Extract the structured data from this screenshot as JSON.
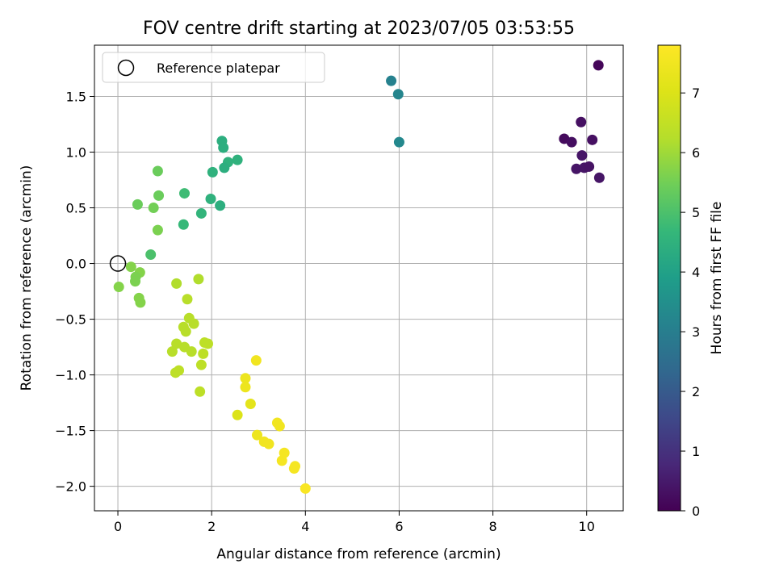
{
  "chart_data": {
    "type": "scatter",
    "title": "FOV centre drift starting at 2023/07/05 03:53:55",
    "xlabel": "Angular distance from reference (arcmin)",
    "ylabel": "Rotation from reference (arcmin)",
    "xlim": [
      -0.5,
      10.78
    ],
    "ylim": [
      -2.22,
      1.96
    ],
    "xticks": [
      0,
      2,
      4,
      6,
      8,
      10
    ],
    "yticks": [
      -2.0,
      -1.5,
      -1.0,
      -0.5,
      0.0,
      0.5,
      1.0,
      1.5
    ],
    "xtick_labels": [
      "0",
      "2",
      "4",
      "6",
      "8",
      "10"
    ],
    "ytick_labels": [
      "−2.0",
      "−1.5",
      "−1.0",
      "−0.5",
      "0.0",
      "0.5",
      "1.0",
      "1.5"
    ],
    "grid": true,
    "legend": {
      "placement": "top-left",
      "entries": [
        {
          "label": "Reference platepar",
          "marker": "open-circle"
        }
      ]
    },
    "reference_point": {
      "x": 0.0,
      "y": 0.0
    },
    "colorbar": {
      "label": "Hours from first FF file",
      "colormap": "viridis",
      "range": [
        0,
        7.8
      ],
      "ticks": [
        0,
        1,
        2,
        3,
        4,
        5,
        6,
        7
      ],
      "tick_labels": [
        "0",
        "1",
        "2",
        "3",
        "4",
        "5",
        "6",
        "7"
      ]
    },
    "points": [
      {
        "x": 10.25,
        "y": 1.78,
        "c": 0.1
      },
      {
        "x": 9.52,
        "y": 1.12,
        "c": 0.2
      },
      {
        "x": 9.68,
        "y": 1.09,
        "c": 0.25
      },
      {
        "x": 9.88,
        "y": 1.27,
        "c": 0.3
      },
      {
        "x": 10.12,
        "y": 1.11,
        "c": 0.3
      },
      {
        "x": 9.9,
        "y": 0.97,
        "c": 0.4
      },
      {
        "x": 9.78,
        "y": 0.85,
        "c": 0.4
      },
      {
        "x": 9.95,
        "y": 0.86,
        "c": 0.4
      },
      {
        "x": 10.05,
        "y": 0.87,
        "c": 0.35
      },
      {
        "x": 10.27,
        "y": 0.77,
        "c": 0.4
      },
      {
        "x": 5.83,
        "y": 1.64,
        "c": 3.1
      },
      {
        "x": 5.98,
        "y": 1.52,
        "c": 3.2
      },
      {
        "x": 6.0,
        "y": 1.09,
        "c": 3.3
      },
      {
        "x": 2.22,
        "y": 1.1,
        "c": 4.4
      },
      {
        "x": 2.25,
        "y": 1.04,
        "c": 4.4
      },
      {
        "x": 2.55,
        "y": 0.93,
        "c": 4.5
      },
      {
        "x": 2.35,
        "y": 0.91,
        "c": 4.5
      },
      {
        "x": 2.27,
        "y": 0.86,
        "c": 4.4
      },
      {
        "x": 2.02,
        "y": 0.82,
        "c": 4.5
      },
      {
        "x": 1.98,
        "y": 0.58,
        "c": 4.5
      },
      {
        "x": 2.18,
        "y": 0.52,
        "c": 4.4
      },
      {
        "x": 1.78,
        "y": 0.45,
        "c": 4.6
      },
      {
        "x": 1.42,
        "y": 0.63,
        "c": 4.8
      },
      {
        "x": 1.4,
        "y": 0.35,
        "c": 4.7
      },
      {
        "x": 0.7,
        "y": 0.08,
        "c": 5.0
      },
      {
        "x": 0.85,
        "y": 0.83,
        "c": 5.4
      },
      {
        "x": 0.87,
        "y": 0.61,
        "c": 5.4
      },
      {
        "x": 0.42,
        "y": 0.53,
        "c": 5.4
      },
      {
        "x": 0.76,
        "y": 0.5,
        "c": 5.5
      },
      {
        "x": 0.85,
        "y": 0.3,
        "c": 5.6
      },
      {
        "x": 0.47,
        "y": -0.08,
        "c": 5.7
      },
      {
        "x": 0.28,
        "y": -0.03,
        "c": 5.7
      },
      {
        "x": 0.38,
        "y": -0.12,
        "c": 5.6
      },
      {
        "x": 0.37,
        "y": -0.16,
        "c": 5.6
      },
      {
        "x": 0.02,
        "y": -0.21,
        "c": 5.7
      },
      {
        "x": 0.45,
        "y": -0.31,
        "c": 5.7
      },
      {
        "x": 0.48,
        "y": -0.35,
        "c": 5.7
      },
      {
        "x": 1.25,
        "y": -0.18,
        "c": 6.2
      },
      {
        "x": 1.72,
        "y": -0.14,
        "c": 6.2
      },
      {
        "x": 1.48,
        "y": -0.32,
        "c": 6.3
      },
      {
        "x": 1.52,
        "y": -0.49,
        "c": 6.3
      },
      {
        "x": 1.62,
        "y": -0.54,
        "c": 6.3
      },
      {
        "x": 1.4,
        "y": -0.57,
        "c": 6.3
      },
      {
        "x": 1.45,
        "y": -0.61,
        "c": 6.3
      },
      {
        "x": 1.85,
        "y": -0.71,
        "c": 6.4
      },
      {
        "x": 1.92,
        "y": -0.72,
        "c": 6.4
      },
      {
        "x": 1.25,
        "y": -0.72,
        "c": 6.3
      },
      {
        "x": 1.42,
        "y": -0.75,
        "c": 6.3
      },
      {
        "x": 1.57,
        "y": -0.79,
        "c": 6.3
      },
      {
        "x": 1.16,
        "y": -0.79,
        "c": 6.3
      },
      {
        "x": 1.82,
        "y": -0.81,
        "c": 6.4
      },
      {
        "x": 1.78,
        "y": -0.91,
        "c": 6.4
      },
      {
        "x": 1.3,
        "y": -0.96,
        "c": 6.4
      },
      {
        "x": 1.23,
        "y": -0.98,
        "c": 6.4
      },
      {
        "x": 1.75,
        "y": -1.15,
        "c": 6.4
      },
      {
        "x": 2.95,
        "y": -0.87,
        "c": 7.5
      },
      {
        "x": 2.72,
        "y": -1.03,
        "c": 7.4
      },
      {
        "x": 2.72,
        "y": -1.11,
        "c": 7.4
      },
      {
        "x": 2.83,
        "y": -1.26,
        "c": 7.2
      },
      {
        "x": 2.55,
        "y": -1.36,
        "c": 7.0
      },
      {
        "x": 3.4,
        "y": -1.43,
        "c": 7.5
      },
      {
        "x": 3.45,
        "y": -1.46,
        "c": 7.5
      },
      {
        "x": 2.97,
        "y": -1.54,
        "c": 7.4
      },
      {
        "x": 3.12,
        "y": -1.6,
        "c": 7.5
      },
      {
        "x": 3.22,
        "y": -1.62,
        "c": 7.5
      },
      {
        "x": 3.55,
        "y": -1.7,
        "c": 7.6
      },
      {
        "x": 3.5,
        "y": -1.77,
        "c": 7.6
      },
      {
        "x": 3.78,
        "y": -1.82,
        "c": 7.6
      },
      {
        "x": 3.76,
        "y": -1.84,
        "c": 7.6
      },
      {
        "x": 4.0,
        "y": -2.02,
        "c": 7.7
      }
    ]
  }
}
